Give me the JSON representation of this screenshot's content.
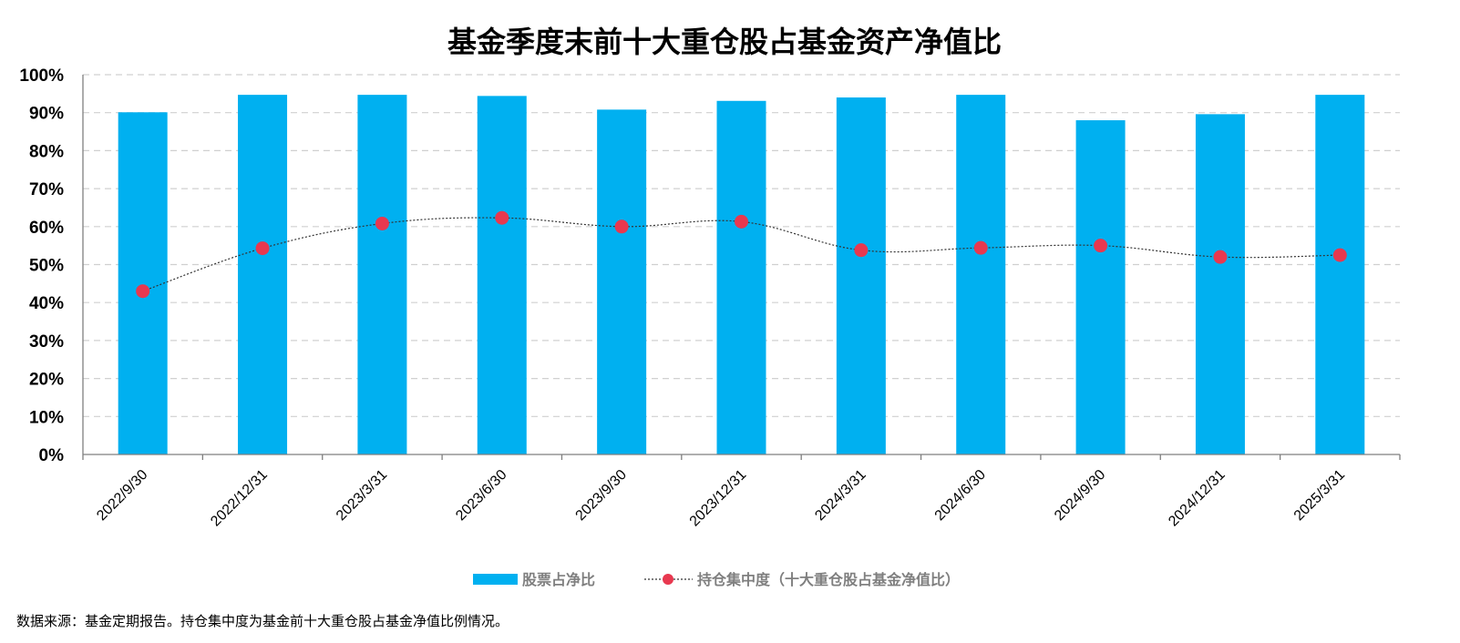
{
  "chart_data": {
    "type": "bar",
    "title": "基金季度末前十大重仓股占基金资产净值比",
    "categories": [
      "2022/9/30",
      "2022/12/31",
      "2023/3/31",
      "2023/6/30",
      "2023/9/30",
      "2023/12/31",
      "2024/3/31",
      "2024/6/30",
      "2024/9/30",
      "2024/12/31",
      "2025/3/31"
    ],
    "series": [
      {
        "name": "股票占净比",
        "kind": "bar",
        "color": "#00b0f0",
        "values": [
          90.1,
          94.7,
          94.7,
          94.4,
          90.8,
          93.1,
          94.0,
          94.7,
          88.0,
          89.6,
          94.7
        ]
      },
      {
        "name": "持仓集中度（十大重仓股占基金净值比）",
        "kind": "line",
        "color": "#e8384f",
        "values": [
          43.0,
          54.3,
          60.8,
          62.3,
          60.0,
          61.3,
          53.8,
          54.4,
          55.0,
          52.0,
          52.5
        ]
      }
    ],
    "ylim": [
      0,
      100
    ],
    "yticks": [
      "0%",
      "10%",
      "20%",
      "30%",
      "40%",
      "50%",
      "60%",
      "70%",
      "80%",
      "90%",
      "100%"
    ],
    "xlabel": "",
    "ylabel": "",
    "grid": true,
    "legend_position": "bottom"
  },
  "source_note": "数据来源：基金定期报告。持仓集中度为基金前十大重仓股占基金净值比例情况。"
}
